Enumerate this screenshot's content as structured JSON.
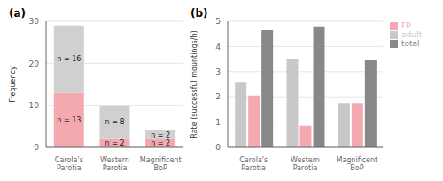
{
  "chart_data": [
    {
      "type": "bar",
      "stacked": true,
      "title": "(a)",
      "categories": [
        "Carola's Parotia",
        "Western Parotia",
        "Magnificent BoP"
      ],
      "series": [
        {
          "color": "#f4a9b0",
          "values": [
            13,
            2,
            2
          ]
        },
        {
          "color": "#d0d0d0",
          "values": [
            16,
            8,
            2
          ]
        }
      ],
      "y_label": "Frequency",
      "ylim": [
        0,
        30
      ],
      "yticks": [
        0,
        10,
        20,
        30
      ],
      "grid": true,
      "annotations": [
        {
          "text": "n = 13",
          "x": "Carola's Parotia",
          "y": 6.5
        },
        {
          "text": "n = 16",
          "x": "Carola's Parotia",
          "y": 21.0
        },
        {
          "text": "n = 2",
          "x": "Western Parotia",
          "y": 1.0
        },
        {
          "text": "n = 8",
          "x": "Western Parotia",
          "y": 6.0
        },
        {
          "text": "n = 2",
          "x": "Magnificent BoP",
          "y": 1.0
        },
        {
          "text": "n = 2",
          "x": "Magnificent BoP",
          "y": 3.0
        }
      ]
    },
    {
      "type": "bar",
      "title": "(b)",
      "categories": [
        "Carola's Parotia",
        "Western Parotia",
        "Magnificent BoP"
      ],
      "series": [
        {
          "name": "adult",
          "color": "#c8c8c8",
          "values": [
            2.6,
            3.5,
            1.75
          ]
        },
        {
          "name": "FP",
          "color": "#f4a9b0",
          "values": [
            2.05,
            0.85,
            1.75
          ]
        },
        {
          "name": "total",
          "color": "#888888",
          "values": [
            4.65,
            4.8,
            3.45
          ]
        }
      ],
      "y_label": "Rate (successful mountings/h)",
      "ylim": [
        0,
        5
      ],
      "yticks": [
        0,
        1,
        2,
        3,
        4,
        5
      ],
      "grid": true,
      "legend": "right"
    }
  ]
}
